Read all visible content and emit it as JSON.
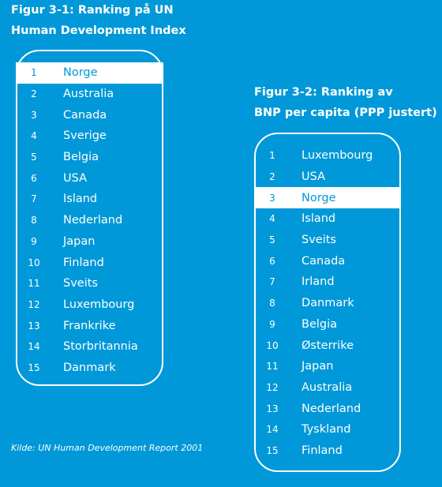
{
  "figure1": {
    "title_line1": "Figur 3-1: Ranking på UN",
    "title_line2": "Human Development Index",
    "items": [
      {
        "rank": "1",
        "name": "Norge"
      },
      {
        "rank": "2",
        "name": "Australia"
      },
      {
        "rank": "3",
        "name": "Canada"
      },
      {
        "rank": "4",
        "name": "Sverige"
      },
      {
        "rank": "5",
        "name": "Belgia"
      },
      {
        "rank": "6",
        "name": "USA"
      },
      {
        "rank": "7",
        "name": "Island"
      },
      {
        "rank": "8",
        "name": "Nederland"
      },
      {
        "rank": "9",
        "name": "Japan"
      },
      {
        "rank": "10",
        "name": "Finland"
      },
      {
        "rank": "11",
        "name": "Sveits"
      },
      {
        "rank": "12",
        "name": "Luxembourg"
      },
      {
        "rank": "13",
        "name": "Frankrike"
      },
      {
        "rank": "14",
        "name": "Storbritannia"
      },
      {
        "rank": "15",
        "name": "Danmark"
      }
    ]
  },
  "figure2": {
    "title_line1": "Figur 3-2: Ranking av",
    "title_line2": "BNP per capita (PPP justert)",
    "items": [
      {
        "rank": "1",
        "name": "Luxembourg"
      },
      {
        "rank": "2",
        "name": "USA"
      },
      {
        "rank": "3",
        "name": "Norge"
      },
      {
        "rank": "4",
        "name": "Island"
      },
      {
        "rank": "5",
        "name": "Sveits"
      },
      {
        "rank": "6",
        "name": "Canada"
      },
      {
        "rank": "7",
        "name": "Irland"
      },
      {
        "rank": "8",
        "name": "Danmark"
      },
      {
        "rank": "9",
        "name": "Belgia"
      },
      {
        "rank": "10",
        "name": "Østerrike"
      },
      {
        "rank": "11",
        "name": "Japan"
      },
      {
        "rank": "12",
        "name": "Australia"
      },
      {
        "rank": "13",
        "name": "Nederland"
      },
      {
        "rank": "14",
        "name": "Tyskland"
      },
      {
        "rank": "15",
        "name": "Finland"
      }
    ]
  },
  "source": "Kilde: UN Human Development Report 2001",
  "colors": {
    "background": "#0098d8",
    "text": "#ffffff",
    "highlight_text": "#0098d8",
    "highlight_bg": "#ffffff"
  }
}
